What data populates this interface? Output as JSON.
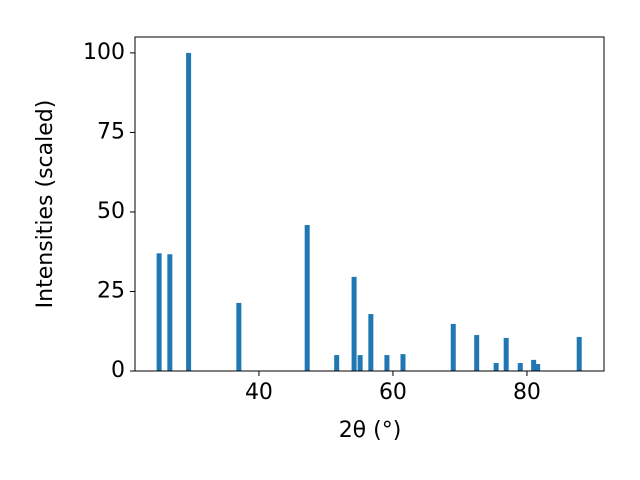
{
  "chart_data": {
    "type": "bar",
    "x_label": "2θ (°)",
    "y_label": "Intensities (scaled)",
    "x": [
      25.1,
      26.7,
      29.5,
      37.0,
      47.2,
      51.6,
      54.2,
      55.1,
      56.7,
      59.1,
      61.5,
      69.0,
      72.5,
      75.4,
      76.9,
      79.0,
      81.0,
      81.6,
      87.8
    ],
    "values": [
      37,
      36.7,
      100,
      21.4,
      45.9,
      5,
      29.6,
      5,
      17.9,
      5,
      5.3,
      14.8,
      11.3,
      2.5,
      10.4,
      2.5,
      3.5,
      2.2,
      10.7
    ],
    "color": "#1f77b4",
    "xlim": [
      21.5,
      91.5
    ],
    "ylim": [
      0,
      105
    ],
    "xticks": [
      40,
      60,
      80
    ],
    "yticks": [
      0,
      25,
      50,
      75,
      100
    ]
  }
}
